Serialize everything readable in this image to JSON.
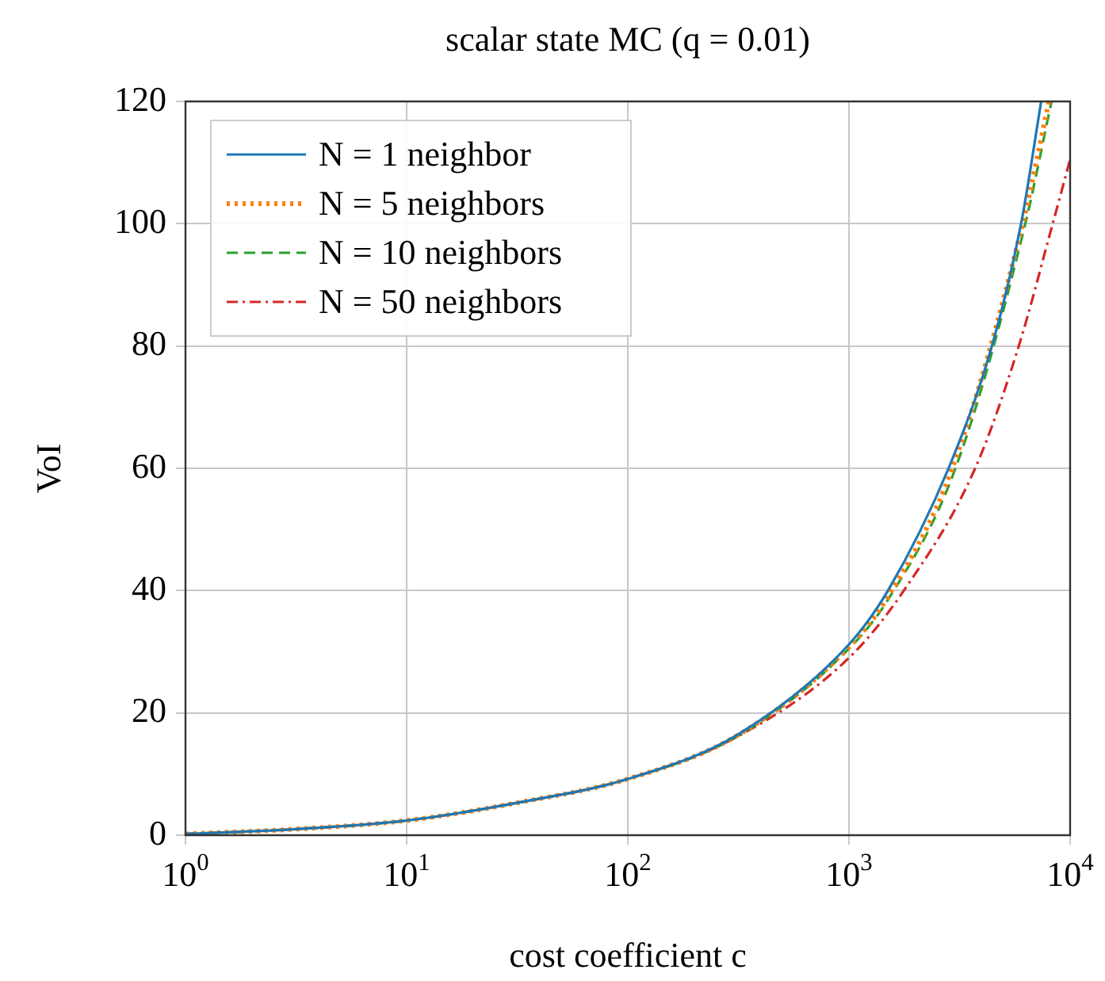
{
  "chart_data": {
    "type": "line",
    "title": "scalar state MC (q = 0.01)",
    "xlabel": "cost coefficient c",
    "ylabel": "VoI",
    "log": "x",
    "xlim": [
      1,
      10000
    ],
    "xticks": [
      {
        "value": 1,
        "label": "10$^{0}$"
      },
      {
        "value": 10,
        "label": "10$^{1}$"
      },
      {
        "value": 100,
        "label": "10$^{2}$"
      },
      {
        "value": 1000,
        "label": "10$^{3}$"
      },
      {
        "value": 10000,
        "label": "10$^{4}$"
      }
    ],
    "ylim": [
      0,
      120
    ],
    "yticks": [
      0,
      20,
      40,
      60,
      80,
      100,
      120
    ],
    "grid": true,
    "legend": "top left",
    "marker": "none",
    "series": [
      {
        "name": "N = 1 neighbor",
        "color": "#1f77b4",
        "line_style": "solid",
        "x": [
          1,
          3.16,
          10,
          31.6,
          100,
          316,
          1000,
          1500,
          2820,
          4430,
          6000,
          7400
        ],
        "values": [
          0.2,
          1,
          2.4,
          5.3,
          9.2,
          16.5,
          31.2,
          40,
          60,
          80,
          100,
          120
        ]
      },
      {
        "name": "N = 5 neighbors",
        "color": "#ff7f0e",
        "line_style": "dotted",
        "x": [
          1,
          3.16,
          10,
          31.6,
          100,
          316,
          1000,
          1500,
          2930,
          6100,
          8020
        ],
        "values": [
          0.2,
          1,
          2.4,
          5.3,
          9.2,
          16.4,
          30.8,
          39,
          60,
          100,
          120
        ]
      },
      {
        "name": "N = 10 neighbors",
        "color": "#2ca02c",
        "line_style": "dashed",
        "x": [
          1,
          3.16,
          10,
          31.6,
          100,
          316,
          1000,
          1500,
          3030,
          6270,
          8240
        ],
        "values": [
          0.2,
          1,
          2.4,
          5.3,
          9.2,
          16.3,
          30.5,
          38.5,
          60,
          100,
          120
        ]
      },
      {
        "name": "N = 50 neighbors",
        "color": "#d62728",
        "line_style": "dashdot",
        "x": [
          1,
          3.16,
          10,
          31.6,
          100,
          316,
          1000,
          1770,
          3720,
          5860,
          8340,
          10000
        ],
        "values": [
          0.2,
          1,
          2.4,
          5.3,
          9.2,
          16.2,
          29,
          40,
          60,
          80,
          100,
          110.5
        ]
      }
    ]
  }
}
